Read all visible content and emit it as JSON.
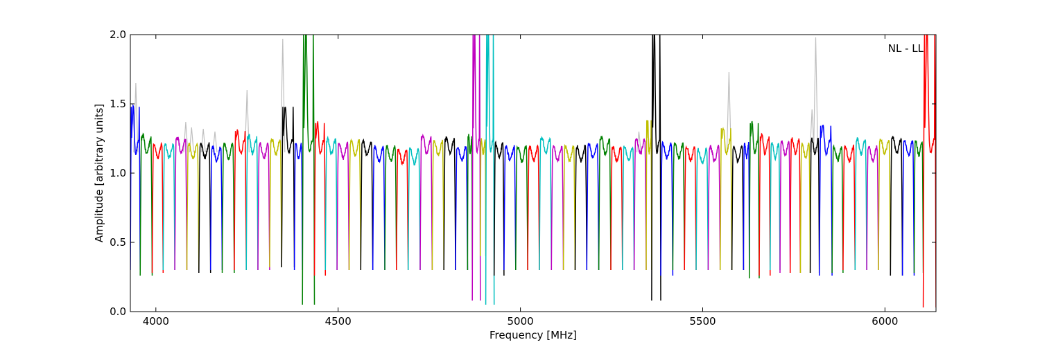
{
  "chart_data": {
    "type": "line",
    "title": "",
    "xlabel": "Frequency [MHz]",
    "ylabel": "Amplitude [arbitrary units]",
    "annotation": "NL - LL",
    "xlim": [
      3930,
      6140
    ],
    "ylim": [
      0.0,
      2.0
    ],
    "grid": false,
    "x_ticks": [
      4000,
      4500,
      5000,
      5500,
      6000
    ],
    "x_tick_labels": [
      "4000",
      "4500",
      "5000",
      "5500",
      "6000"
    ],
    "y_ticks": [
      0.0,
      0.5,
      1.0,
      1.5,
      2.0
    ],
    "y_tick_labels": [
      "0.0",
      "0.5",
      "1.0",
      "1.5",
      "2.0"
    ],
    "reference_series_color": "#bfbfbf",
    "band_colors": [
      "#0000ff",
      "#008000",
      "#ff0000",
      "#00bfbf",
      "#bf00bf",
      "#bfbf00",
      "#000000"
    ],
    "bands": [
      {
        "start": 3930,
        "end": 3957,
        "peak": 1.52,
        "min": 0.3,
        "color": "#0000ff"
      },
      {
        "start": 3957,
        "end": 3990,
        "peak": 1.3,
        "min": 0.26,
        "color": "#008000"
      },
      {
        "start": 3990,
        "end": 4020,
        "peak": 1.22,
        "min": 0.28,
        "color": "#ff0000"
      },
      {
        "start": 4020,
        "end": 4052,
        "peak": 1.22,
        "min": 0.3,
        "color": "#00bfbf"
      },
      {
        "start": 4052,
        "end": 4085,
        "peak": 1.28,
        "min": 0.3,
        "color": "#bf00bf"
      },
      {
        "start": 4085,
        "end": 4118,
        "peak": 1.22,
        "min": 0.3,
        "color": "#bfbf00"
      },
      {
        "start": 4118,
        "end": 4150,
        "peak": 1.22,
        "min": 0.28,
        "color": "#000000"
      },
      {
        "start": 4150,
        "end": 4182,
        "peak": 1.2,
        "min": 0.3,
        "color": "#0000ff"
      },
      {
        "start": 4182,
        "end": 4215,
        "peak": 1.22,
        "min": 0.28,
        "color": "#008000"
      },
      {
        "start": 4215,
        "end": 4248,
        "peak": 1.34,
        "min": 0.3,
        "color": "#ff0000"
      },
      {
        "start": 4248,
        "end": 4280,
        "peak": 1.3,
        "min": 0.3,
        "color": "#00bfbf"
      },
      {
        "start": 4280,
        "end": 4312,
        "peak": 1.22,
        "min": 0.3,
        "color": "#bf00bf"
      },
      {
        "start": 4312,
        "end": 4345,
        "peak": 1.26,
        "min": 0.32,
        "color": "#bfbf00"
      },
      {
        "start": 4345,
        "end": 4380,
        "peak": 1.52,
        "min": 0.32,
        "color": "#000000"
      },
      {
        "start": 4380,
        "end": 4402,
        "peak": 1.22,
        "min": 0.3,
        "color": "#0000ff"
      },
      {
        "start": 4402,
        "end": 4435,
        "peak": 2.1,
        "min": 0.05,
        "color": "#008000"
      },
      {
        "start": 4435,
        "end": 4465,
        "peak": 1.4,
        "min": 0.26,
        "color": "#ff0000"
      },
      {
        "start": 4465,
        "end": 4497,
        "peak": 1.26,
        "min": 0.3,
        "color": "#00bfbf"
      },
      {
        "start": 4497,
        "end": 4530,
        "peak": 1.22,
        "min": 0.3,
        "color": "#bf00bf"
      },
      {
        "start": 4530,
        "end": 4562,
        "peak": 1.24,
        "min": 0.3,
        "color": "#bfbf00"
      },
      {
        "start": 4562,
        "end": 4595,
        "peak": 1.24,
        "min": 0.3,
        "color": "#000000"
      },
      {
        "start": 4595,
        "end": 4628,
        "peak": 1.2,
        "min": 0.3,
        "color": "#0000ff"
      },
      {
        "start": 4628,
        "end": 4660,
        "peak": 1.2,
        "min": 0.3,
        "color": "#008000"
      },
      {
        "start": 4660,
        "end": 4692,
        "peak": 1.18,
        "min": 0.3,
        "color": "#ff0000"
      },
      {
        "start": 4692,
        "end": 4725,
        "peak": 1.18,
        "min": 0.3,
        "color": "#00bfbf"
      },
      {
        "start": 4725,
        "end": 4758,
        "peak": 1.3,
        "min": 0.3,
        "color": "#bf00bf"
      },
      {
        "start": 4758,
        "end": 4790,
        "peak": 1.24,
        "min": 0.3,
        "color": "#bfbf00"
      },
      {
        "start": 4790,
        "end": 4822,
        "peak": 1.28,
        "min": 0.3,
        "color": "#000000"
      },
      {
        "start": 4822,
        "end": 4855,
        "peak": 1.2,
        "min": 0.3,
        "color": "#0000ff"
      },
      {
        "start": 4855,
        "end": 4868,
        "peak": 1.3,
        "min": 0.3,
        "color": "#008000"
      },
      {
        "start": 4868,
        "end": 4890,
        "peak": 2.1,
        "min": 0.08,
        "color": "#bf00bf"
      },
      {
        "start": 4890,
        "end": 4905,
        "peak": 1.25,
        "min": 0.4,
        "color": "#bfbf00"
      },
      {
        "start": 4905,
        "end": 4928,
        "peak": 2.1,
        "min": 0.05,
        "color": "#00bfbf"
      },
      {
        "start": 4928,
        "end": 4955,
        "peak": 1.22,
        "min": 0.26,
        "color": "#000000"
      },
      {
        "start": 4955,
        "end": 4987,
        "peak": 1.2,
        "min": 0.3,
        "color": "#0000ff"
      },
      {
        "start": 4987,
        "end": 5020,
        "peak": 1.2,
        "min": 0.3,
        "color": "#008000"
      },
      {
        "start": 5020,
        "end": 5052,
        "peak": 1.2,
        "min": 0.3,
        "color": "#ff0000"
      },
      {
        "start": 5052,
        "end": 5085,
        "peak": 1.28,
        "min": 0.3,
        "color": "#00bfbf"
      },
      {
        "start": 5085,
        "end": 5118,
        "peak": 1.2,
        "min": 0.3,
        "color": "#bf00bf"
      },
      {
        "start": 5118,
        "end": 5150,
        "peak": 1.2,
        "min": 0.3,
        "color": "#bfbf00"
      },
      {
        "start": 5150,
        "end": 5182,
        "peak": 1.2,
        "min": 0.3,
        "color": "#000000"
      },
      {
        "start": 5182,
        "end": 5215,
        "peak": 1.22,
        "min": 0.3,
        "color": "#0000ff"
      },
      {
        "start": 5215,
        "end": 5248,
        "peak": 1.28,
        "min": 0.3,
        "color": "#008000"
      },
      {
        "start": 5248,
        "end": 5280,
        "peak": 1.2,
        "min": 0.3,
        "color": "#ff0000"
      },
      {
        "start": 5280,
        "end": 5312,
        "peak": 1.2,
        "min": 0.3,
        "color": "#00bfbf"
      },
      {
        "start": 5312,
        "end": 5345,
        "peak": 1.26,
        "min": 0.3,
        "color": "#bf00bf"
      },
      {
        "start": 5345,
        "end": 5360,
        "peak": 1.42,
        "min": 0.3,
        "color": "#bfbf00"
      },
      {
        "start": 5360,
        "end": 5385,
        "peak": 2.1,
        "min": 0.08,
        "color": "#000000"
      },
      {
        "start": 5385,
        "end": 5418,
        "peak": 1.22,
        "min": 0.26,
        "color": "#0000ff"
      },
      {
        "start": 5418,
        "end": 5450,
        "peak": 1.22,
        "min": 0.3,
        "color": "#008000"
      },
      {
        "start": 5450,
        "end": 5482,
        "peak": 1.2,
        "min": 0.3,
        "color": "#ff0000"
      },
      {
        "start": 5482,
        "end": 5515,
        "peak": 1.18,
        "min": 0.3,
        "color": "#00bfbf"
      },
      {
        "start": 5515,
        "end": 5548,
        "peak": 1.2,
        "min": 0.3,
        "color": "#bf00bf"
      },
      {
        "start": 5548,
        "end": 5580,
        "peak": 1.36,
        "min": 0.3,
        "color": "#bfbf00"
      },
      {
        "start": 5580,
        "end": 5612,
        "peak": 1.2,
        "min": 0.3,
        "color": "#000000"
      },
      {
        "start": 5612,
        "end": 5628,
        "peak": 1.22,
        "min": 0.3,
        "color": "#0000ff"
      },
      {
        "start": 5628,
        "end": 5655,
        "peak": 1.4,
        "min": 0.24,
        "color": "#008000"
      },
      {
        "start": 5655,
        "end": 5685,
        "peak": 1.3,
        "min": 0.26,
        "color": "#ff0000"
      },
      {
        "start": 5685,
        "end": 5712,
        "peak": 1.22,
        "min": 0.3,
        "color": "#00bfbf"
      },
      {
        "start": 5712,
        "end": 5740,
        "peak": 1.24,
        "min": 0.28,
        "color": "#bf00bf"
      },
      {
        "start": 5740,
        "end": 5768,
        "peak": 1.26,
        "min": 0.28,
        "color": "#ff0000"
      },
      {
        "start": 5768,
        "end": 5795,
        "peak": 1.22,
        "min": 0.28,
        "color": "#bfbf00"
      },
      {
        "start": 5795,
        "end": 5820,
        "peak": 1.26,
        "min": 0.28,
        "color": "#000000"
      },
      {
        "start": 5820,
        "end": 5855,
        "peak": 1.38,
        "min": 0.26,
        "color": "#0000ff"
      },
      {
        "start": 5855,
        "end": 5885,
        "peak": 1.2,
        "min": 0.28,
        "color": "#008000"
      },
      {
        "start": 5885,
        "end": 5918,
        "peak": 1.2,
        "min": 0.3,
        "color": "#ff0000"
      },
      {
        "start": 5918,
        "end": 5950,
        "peak": 1.26,
        "min": 0.3,
        "color": "#00bfbf"
      },
      {
        "start": 5950,
        "end": 5982,
        "peak": 1.2,
        "min": 0.3,
        "color": "#bf00bf"
      },
      {
        "start": 5982,
        "end": 6015,
        "peak": 1.26,
        "min": 0.3,
        "color": "#bfbf00"
      },
      {
        "start": 6015,
        "end": 6048,
        "peak": 1.28,
        "min": 0.26,
        "color": "#000000"
      },
      {
        "start": 6048,
        "end": 6080,
        "peak": 1.24,
        "min": 0.26,
        "color": "#0000ff"
      },
      {
        "start": 6080,
        "end": 6105,
        "peak": 1.24,
        "min": 0.28,
        "color": "#008000"
      },
      {
        "start": 6105,
        "end": 6140,
        "peak": 2.1,
        "min": 0.03,
        "color": "#ff0000"
      }
    ],
    "reference_spikes": [
      {
        "x": 3945,
        "y": 1.65
      },
      {
        "x": 4082,
        "y": 1.37
      },
      {
        "x": 4098,
        "y": 1.33
      },
      {
        "x": 4130,
        "y": 1.32
      },
      {
        "x": 4162,
        "y": 1.3
      },
      {
        "x": 4250,
        "y": 1.6
      },
      {
        "x": 4348,
        "y": 1.97
      },
      {
        "x": 5325,
        "y": 1.3
      },
      {
        "x": 5572,
        "y": 1.73
      },
      {
        "x": 5800,
        "y": 1.46
      },
      {
        "x": 5810,
        "y": 1.98
      }
    ]
  }
}
